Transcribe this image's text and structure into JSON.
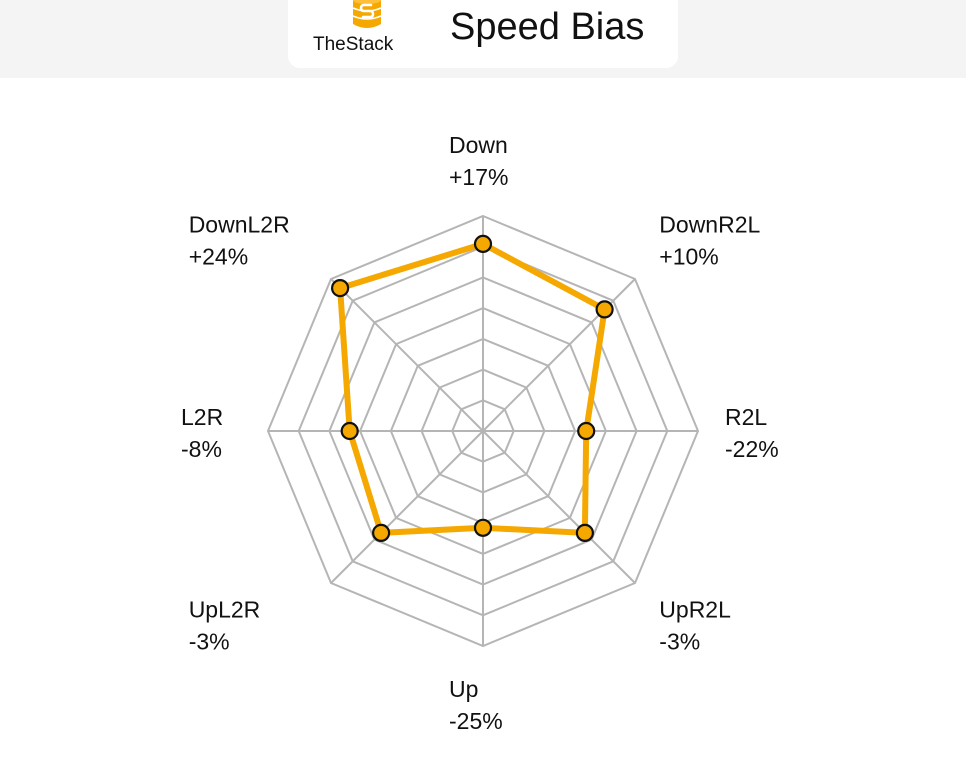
{
  "header": {
    "logo_text": "TheStack",
    "title": "Speed Bias"
  },
  "colors": {
    "series": "#f5a800",
    "grid": "#b5b5b5",
    "marker_stroke": "#111111",
    "header_band": "#f4f4f4"
  },
  "icons": {
    "logo": "stack-database-icon"
  },
  "chart_data": {
    "type": "radar",
    "title": "Speed Bias",
    "categories": [
      "Down",
      "DownR2L",
      "R2L",
      "UpR2L",
      "Up",
      "UpL2R",
      "L2R",
      "DownL2R"
    ],
    "value_labels": [
      "+17%",
      "+10%",
      "-22%",
      "-3%",
      "-25%",
      "-3%",
      "-8%",
      "+24%"
    ],
    "values": [
      17,
      10,
      -22,
      -3,
      -25,
      -3,
      -8,
      24
    ],
    "range": [
      -70,
      30
    ],
    "grid_rings": 7,
    "grid": true,
    "legend": "none"
  }
}
